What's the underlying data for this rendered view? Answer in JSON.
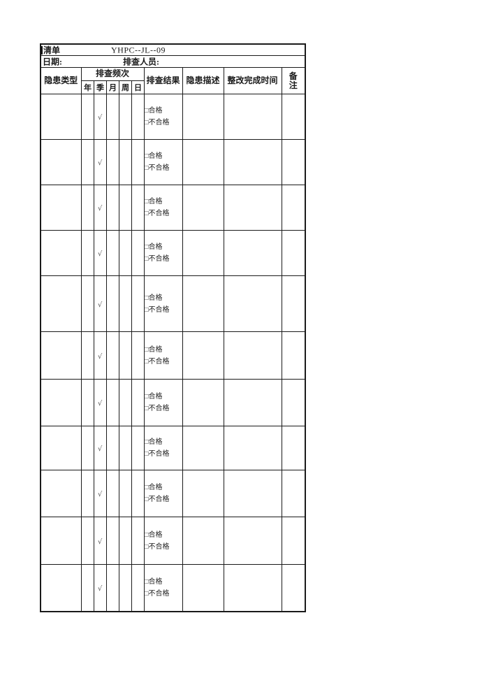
{
  "document": {
    "title_fragment": "清单",
    "doc_number": "YHPC--JL--09",
    "date_label": "日期:",
    "inspector_label": "排查人员:"
  },
  "table": {
    "headers": {
      "hazard_type": "隐患类型",
      "frequency": "排查频次",
      "frequency_cols": [
        "年",
        "季",
        "月",
        "周",
        "日"
      ],
      "result": "排查结果",
      "description": "隐患描述",
      "completion_time": "整改完成时间",
      "remarks_lines": [
        "备",
        "注"
      ]
    },
    "rows": [
      {
        "hazard_type": "",
        "year": "",
        "quarter": "√",
        "month": "",
        "week": "",
        "day": "",
        "result_options": [
          "□合格",
          "□不合格"
        ],
        "description": "",
        "completion_time": "",
        "remarks": ""
      },
      {
        "hazard_type": "",
        "year": "",
        "quarter": "√",
        "month": "",
        "week": "",
        "day": "",
        "result_options": [
          "□合格",
          "□不合格"
        ],
        "description": "",
        "completion_time": "",
        "remarks": ""
      },
      {
        "hazard_type": "",
        "year": "",
        "quarter": "√",
        "month": "",
        "week": "",
        "day": "",
        "result_options": [
          "□合格",
          "□不合格"
        ],
        "description": "",
        "completion_time": "",
        "remarks": ""
      },
      {
        "hazard_type": "",
        "year": "",
        "quarter": "√",
        "month": "",
        "week": "",
        "day": "",
        "result_options": [
          "□合格",
          "□不合格"
        ],
        "description": "",
        "completion_time": "",
        "remarks": ""
      },
      {
        "hazard_type": "",
        "year": "",
        "quarter": "√",
        "month": "",
        "week": "",
        "day": "",
        "result_options": [
          "□合格",
          "□不合格"
        ],
        "description": "",
        "completion_time": "",
        "remarks": ""
      },
      {
        "hazard_type": "",
        "year": "",
        "quarter": "√",
        "month": "",
        "week": "",
        "day": "",
        "result_options": [
          "□合格",
          "□不合格"
        ],
        "description": "",
        "completion_time": "",
        "remarks": ""
      },
      {
        "hazard_type": "",
        "year": "",
        "quarter": "√",
        "month": "",
        "week": "",
        "day": "",
        "result_options": [
          "□合格",
          "□不合格"
        ],
        "description": "",
        "completion_time": "",
        "remarks": ""
      },
      {
        "hazard_type": "",
        "year": "",
        "quarter": "√",
        "month": "",
        "week": "",
        "day": "",
        "result_options": [
          "□合格",
          "□不合格"
        ],
        "description": "",
        "completion_time": "",
        "remarks": ""
      },
      {
        "hazard_type": "",
        "year": "",
        "quarter": "√",
        "month": "",
        "week": "",
        "day": "",
        "result_options": [
          "□合格",
          "□不合格"
        ],
        "description": "",
        "completion_time": "",
        "remarks": ""
      },
      {
        "hazard_type": "",
        "year": "",
        "quarter": "√",
        "month": "",
        "week": "",
        "day": "",
        "result_options": [
          "□合格",
          "□不合格"
        ],
        "description": "",
        "completion_time": "",
        "remarks": ""
      },
      {
        "hazard_type": "",
        "year": "",
        "quarter": "√",
        "month": "",
        "week": "",
        "day": "",
        "result_options": [
          "□合格",
          "□不合格"
        ],
        "description": "",
        "completion_time": "",
        "remarks": ""
      }
    ]
  },
  "colors": {
    "border": "#1a1a1a",
    "text": "#1a1a1a",
    "check_mark": "#555555",
    "background": "#ffffff"
  }
}
